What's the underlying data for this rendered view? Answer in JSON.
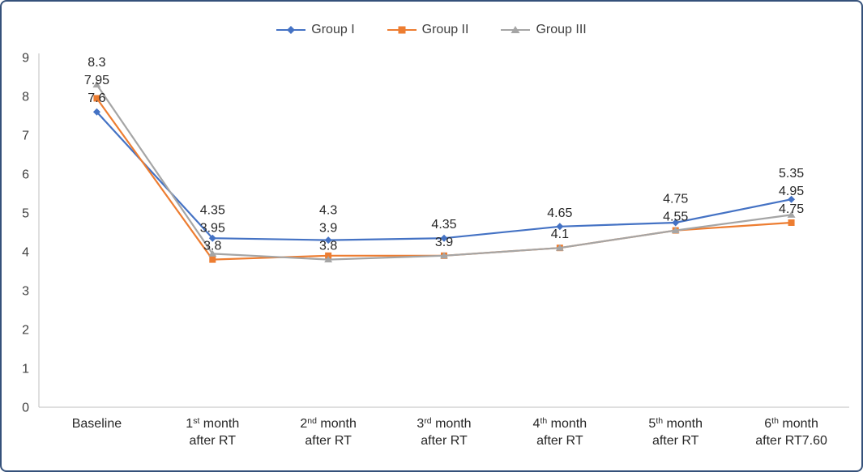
{
  "legend": {
    "items": [
      {
        "label": "Group I",
        "color": "#4472C4",
        "marker": "diamond"
      },
      {
        "label": "Group II",
        "color": "#ED7D31",
        "marker": "square"
      },
      {
        "label": "Group III",
        "color": "#A5A5A5",
        "marker": "triangle"
      }
    ]
  },
  "chart_data": {
    "type": "line",
    "title": "",
    "categories": [
      "Baseline",
      "1st month after RT",
      "2nd month after RT",
      "3rd month after RT",
      "4th month after RT",
      "5th month after RT",
      "6th month after RT7.60"
    ],
    "category_labels": [
      {
        "line1": [
          {
            "t": "Baseline"
          }
        ],
        "line2": ""
      },
      {
        "line1": [
          {
            "t": "1"
          },
          {
            "sup": "st"
          },
          {
            "t": " month"
          }
        ],
        "line2": "after RT"
      },
      {
        "line1": [
          {
            "t": "2"
          },
          {
            "sup": "nd"
          },
          {
            "t": " month"
          }
        ],
        "line2": "after RT"
      },
      {
        "line1": [
          {
            "t": "3"
          },
          {
            "sup": "rd"
          },
          {
            "t": " month"
          }
        ],
        "line2": "after RT"
      },
      {
        "line1": [
          {
            "t": "4"
          },
          {
            "sup": "th"
          },
          {
            "t": " month"
          }
        ],
        "line2": "after RT"
      },
      {
        "line1": [
          {
            "t": "5"
          },
          {
            "sup": "th"
          },
          {
            "t": " month"
          }
        ],
        "line2": "after RT"
      },
      {
        "line1": [
          {
            "t": "6"
          },
          {
            "sup": "th"
          },
          {
            "t": " month"
          }
        ],
        "line2": "after RT7.60"
      }
    ],
    "series": [
      {
        "name": "Group I",
        "color": "#4472C4",
        "marker": "diamond",
        "values": [
          7.6,
          4.35,
          4.3,
          4.35,
          4.65,
          4.75,
          5.35
        ]
      },
      {
        "name": "Group II",
        "color": "#ED7D31",
        "marker": "square",
        "values": [
          7.95,
          3.8,
          3.9,
          3.9,
          4.1,
          4.55,
          4.75
        ]
      },
      {
        "name": "Group III",
        "color": "#A5A5A5",
        "marker": "triangle",
        "values": [
          8.3,
          3.95,
          3.8,
          3.9,
          4.1,
          4.55,
          4.95
        ]
      }
    ],
    "ylim": [
      0,
      9
    ],
    "ytick_step": 1,
    "grid": false,
    "legend_position": "top",
    "data_labels": true
  },
  "axis": {
    "line_color": "#bfbfbf",
    "tick_text_color": "#404040",
    "label_text_color": "#262626"
  }
}
